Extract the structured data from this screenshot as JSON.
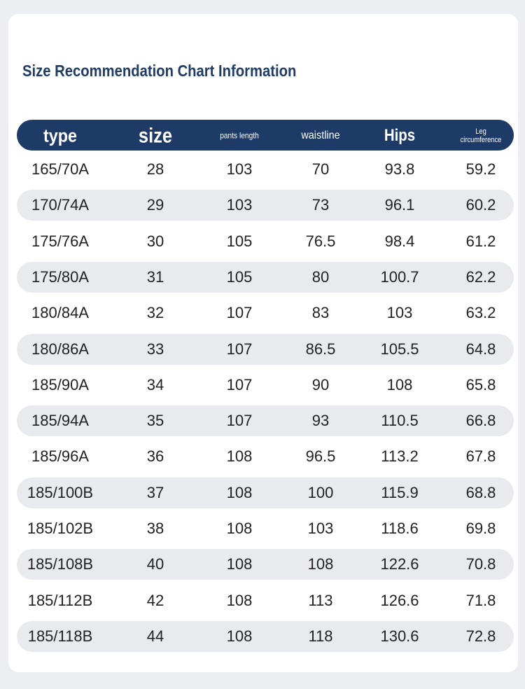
{
  "header": {
    "title": "Size Recommendation Chart Information"
  },
  "table": {
    "header": [
      "type",
      "size",
      "pants length",
      "waistline",
      "Hips",
      "Leg circumference"
    ],
    "rows": [
      [
        "165/70A",
        "28",
        "103",
        "70",
        "93.8",
        "59.2"
      ],
      [
        "170/74A",
        "29",
        "103",
        "73",
        "96.1",
        "60.2"
      ],
      [
        "175/76A",
        "30",
        "105",
        "76.5",
        "98.4",
        "61.2"
      ],
      [
        "175/80A",
        "31",
        "105",
        "80",
        "100.7",
        "62.2"
      ],
      [
        "180/84A",
        "32",
        "107",
        "83",
        "103",
        "63.2"
      ],
      [
        "180/86A",
        "33",
        "107",
        "86.5",
        "105.5",
        "64.8"
      ],
      [
        "185/90A",
        "34",
        "107",
        "90",
        "108",
        "65.8"
      ],
      [
        "185/94A",
        "35",
        "107",
        "93",
        "110.5",
        "66.8"
      ],
      [
        "185/96A",
        "36",
        "108",
        "96.5",
        "113.2",
        "67.8"
      ],
      [
        "185/100B",
        "37",
        "108",
        "100",
        "115.9",
        "68.8"
      ],
      [
        "185/102B",
        "38",
        "108",
        "103",
        "118.6",
        "69.8"
      ],
      [
        "185/108B",
        "40",
        "108",
        "108",
        "122.6",
        "70.8"
      ],
      [
        "185/112B",
        "42",
        "108",
        "113",
        "126.6",
        "71.8"
      ],
      [
        "185/118B",
        "44",
        "108",
        "118",
        "130.6",
        "72.8"
      ]
    ]
  }
}
